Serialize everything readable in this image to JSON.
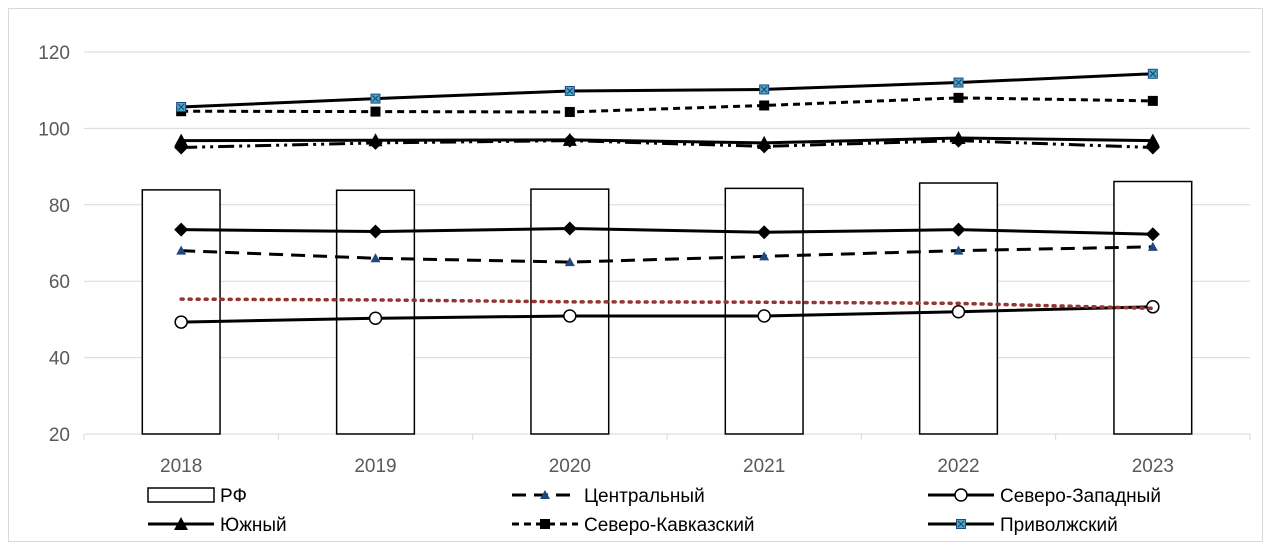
{
  "chart_data": {
    "type": "bar+line",
    "title": "",
    "xlabel": "",
    "ylabel": "",
    "ylim": [
      20,
      120
    ],
    "yticks": [
      20,
      40,
      60,
      80,
      100,
      120
    ],
    "grid": true,
    "legend_position": "bottom",
    "categories": [
      "2018",
      "2019",
      "2020",
      "2021",
      "2022",
      "2023"
    ],
    "series": [
      {
        "name": "РФ",
        "kind": "bar",
        "values": [
          83.9,
          83.8,
          84.1,
          84.3,
          85.7,
          86.1
        ]
      },
      {
        "name": "Центральный",
        "kind": "line",
        "style": "dashed",
        "marker": "triangle-small",
        "values": [
          68.0,
          66.0,
          65.0,
          66.5,
          68.0,
          69.0
        ]
      },
      {
        "name": "Северо-Западный",
        "kind": "line",
        "style": "solid",
        "marker": "circle-open",
        "values": [
          49.3,
          50.3,
          50.9,
          50.9,
          52.0,
          53.3
        ]
      },
      {
        "name": "Южный",
        "kind": "line",
        "style": "solid",
        "marker": "triangle",
        "values": [
          96.8,
          96.9,
          97.0,
          96.2,
          97.5,
          96.8
        ]
      },
      {
        "name": "Северо-Кавказский",
        "kind": "line",
        "style": "short-dash",
        "marker": "square",
        "values": [
          104.5,
          104.4,
          104.3,
          106.0,
          108.0,
          107.2
        ]
      },
      {
        "name": "Приволжский",
        "kind": "line",
        "style": "solid",
        "marker": "x-square",
        "values": [
          105.6,
          107.8,
          109.8,
          110.2,
          112.0,
          114.3
        ]
      },
      {
        "name": "",
        "kind": "line",
        "style": "dash-dot-dot",
        "marker": "diamond-dark",
        "values": [
          95.0,
          96.2,
          96.8,
          95.3,
          96.8,
          95.0
        ]
      },
      {
        "name": "",
        "kind": "line",
        "style": "solid",
        "marker": "diamond",
        "values": [
          73.5,
          73.0,
          73.8,
          72.8,
          73.5,
          72.3
        ]
      },
      {
        "name": "",
        "kind": "line",
        "style": "dotted",
        "marker": "none",
        "color": "#943634",
        "values": [
          55.3,
          55.1,
          54.6,
          54.5,
          54.2,
          52.9
        ]
      }
    ]
  }
}
